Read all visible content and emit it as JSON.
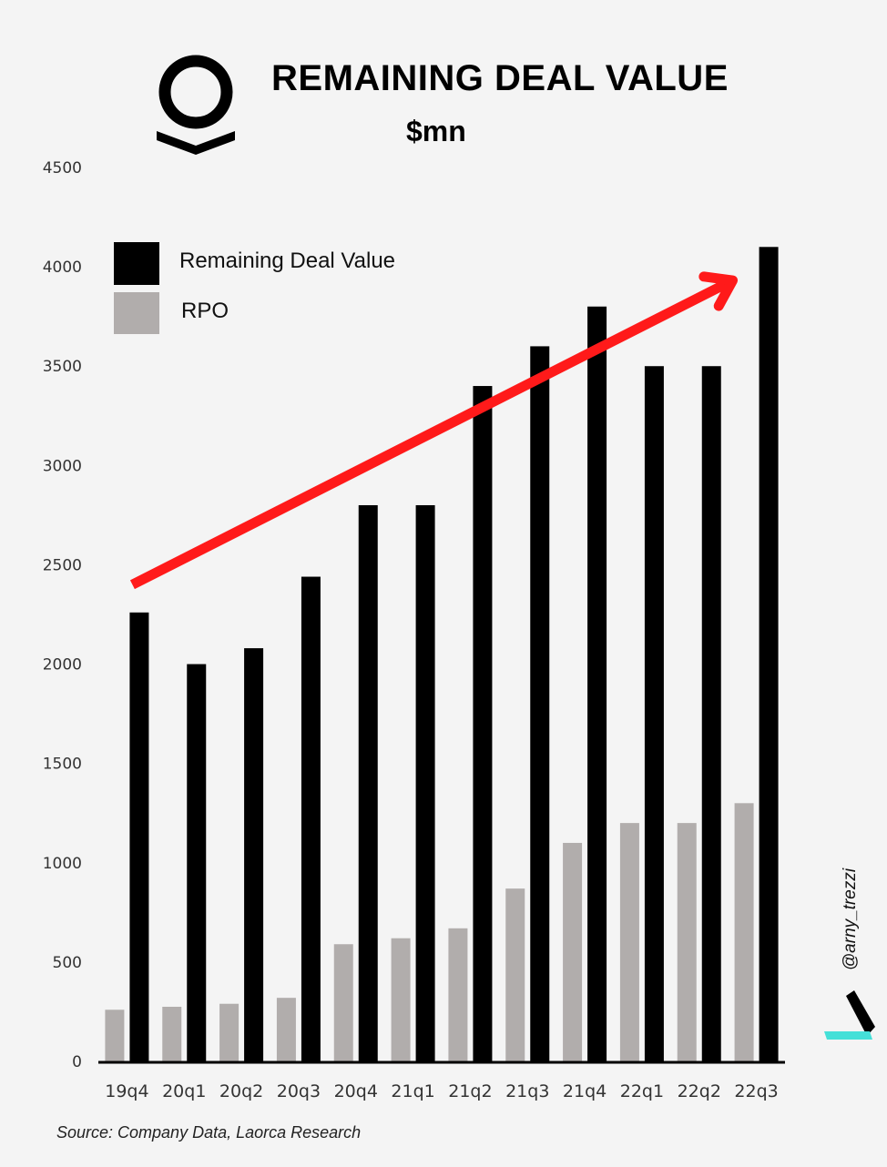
{
  "chart_data": {
    "type": "bar",
    "title": "REMAINING DEAL VALUE",
    "subtitle": "$mn",
    "categories": [
      "19q4",
      "20q1",
      "20q2",
      "20q3",
      "20q4",
      "21q1",
      "21q2",
      "21q3",
      "21q4",
      "22q1",
      "22q2",
      "22q3"
    ],
    "series": [
      {
        "name": "RPO",
        "color": "#b1adac",
        "values": [
          260,
          275,
          290,
          320,
          590,
          620,
          670,
          870,
          1100,
          1200,
          1200,
          1300
        ]
      },
      {
        "name": "Remaining Deal Value",
        "color": "#000000",
        "values": [
          2260,
          2000,
          2080,
          2440,
          2800,
          2800,
          3400,
          3600,
          3800,
          3500,
          3500,
          4100
        ]
      }
    ],
    "ylim": [
      0,
      4500
    ],
    "yticks": [
      "0",
      "500",
      "1000",
      "1500",
      "2000",
      "2500",
      "3000",
      "3500",
      "4000",
      "4500"
    ],
    "grid": false,
    "legend": "top-left",
    "trend_arrow": {
      "from": [
        "19q4",
        2400
      ],
      "to": [
        "22q3",
        3950
      ],
      "color": "#ff1a1a"
    },
    "source": "Source: Company Data, Laorca Research",
    "watermark": "@arny_trezzi"
  }
}
